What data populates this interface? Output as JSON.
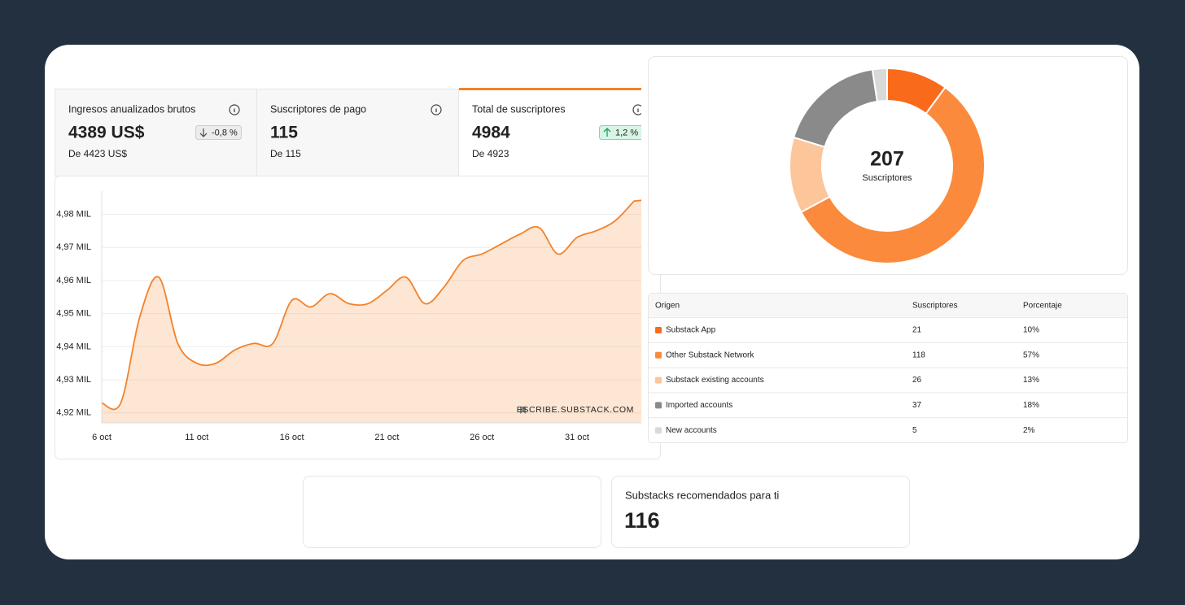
{
  "metrics": [
    {
      "title": "Ingresos anualizados brutos",
      "value": "4389 US$",
      "change": "-0,8 %",
      "previous": "De 4423 US$"
    },
    {
      "title": "Suscriptores de pago",
      "value": "115",
      "previous": "De 115"
    },
    {
      "title": "Total de suscriptores",
      "value": "4984",
      "change": "1,2 %",
      "previous": "De 4923"
    }
  ],
  "chart_data": [
    {
      "type": "line",
      "categories": [
        "6 oct",
        null,
        null,
        null,
        null,
        "11 oct",
        null,
        null,
        null,
        null,
        "16 oct",
        null,
        null,
        null,
        null,
        "21 oct",
        null,
        null,
        null,
        null,
        "26 oct",
        null,
        null,
        null,
        null,
        "31 oct",
        null,
        null,
        null
      ],
      "values": [
        4923,
        4923,
        4949,
        4961,
        4941,
        4935,
        4935,
        4939,
        4941,
        4941,
        4954,
        4952,
        4956,
        4953,
        4953,
        4957,
        4961,
        4953,
        4958,
        4966,
        4968,
        4971,
        4974,
        4976,
        4968,
        4973,
        4975,
        4978,
        4984
      ],
      "color": "#f4812a",
      "ylim": [
        4917,
        4987
      ],
      "yticks": [
        {
          "value": 4920,
          "label": "4,92 MIL"
        },
        {
          "value": 4930,
          "label": "4,93 MIL"
        },
        {
          "value": 4940,
          "label": "4,94 MIL"
        },
        {
          "value": 4950,
          "label": "4,95 MIL"
        },
        {
          "value": 4960,
          "label": "4,96 MIL"
        },
        {
          "value": 4970,
          "label": "4,97 MIL"
        },
        {
          "value": 4980,
          "label": "4,98 MIL"
        }
      ],
      "grid": true,
      "watermark": "ESCRIBE.SUBSTACK.COM"
    },
    {
      "type": "donut",
      "total": "207",
      "center_label": "Suscriptores",
      "values": [
        21,
        118,
        26,
        37,
        5
      ],
      "colors": [
        "#f96a1b",
        "#fb8a3c",
        "#fcc59a",
        "#8a8a8a",
        "#d9d9d9"
      ]
    }
  ],
  "table": {
    "header": [
      "Origen",
      "Suscriptores",
      "Porcentaje"
    ],
    "rows": [
      [
        "Substack App",
        "21",
        "10%"
      ],
      [
        "Other Substack Network",
        "118",
        "57%"
      ],
      [
        "Substack existing accounts",
        "26",
        "13%"
      ],
      [
        "Imported accounts",
        "37",
        "18%"
      ],
      [
        "New accounts",
        "5",
        "2%"
      ]
    ]
  },
  "recommended": {
    "title": "Substacks recomendados para ti",
    "value": "116"
  }
}
